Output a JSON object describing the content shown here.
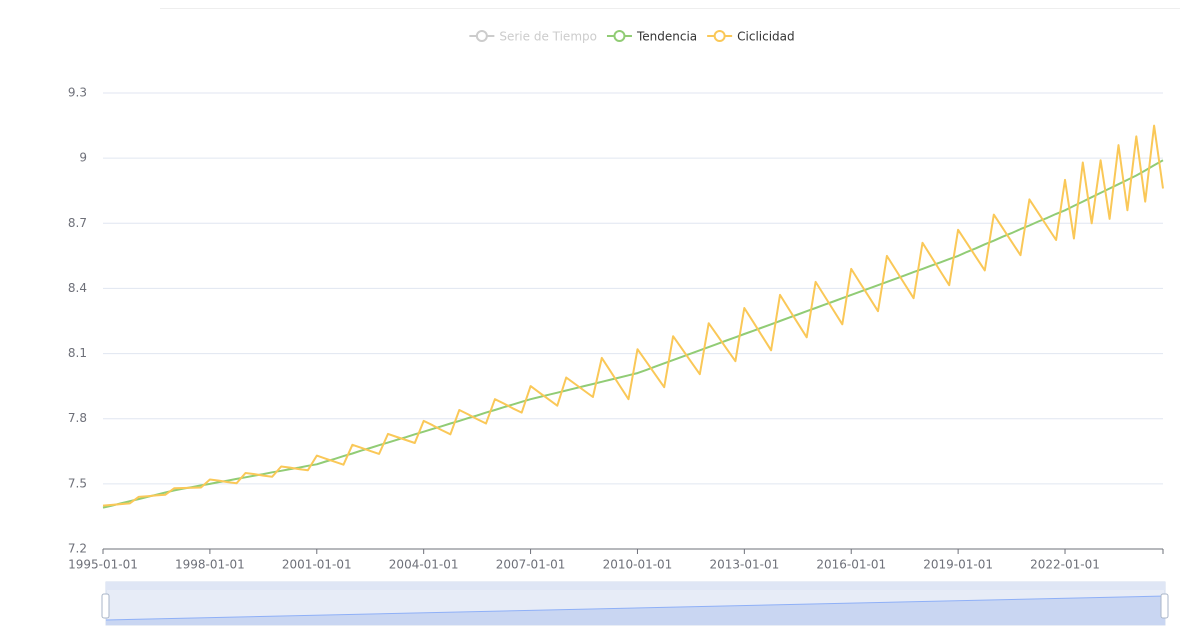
{
  "chart_data": {
    "type": "line",
    "categories": [
      "1995-01-01",
      null,
      null,
      null,
      null,
      null,
      null,
      null,
      null,
      null,
      null,
      null,
      "1998-01-01",
      null,
      null,
      null,
      null,
      null,
      null,
      null,
      null,
      null,
      null,
      null,
      "2001-01-01",
      null,
      null,
      null,
      null,
      null,
      null,
      null,
      null,
      null,
      null,
      null,
      "2004-01-01",
      null,
      null,
      null,
      null,
      null,
      null,
      null,
      null,
      null,
      null,
      null,
      "2007-01-01",
      null,
      null,
      null,
      null,
      null,
      null,
      null,
      null,
      null,
      null,
      null,
      "2010-01-01",
      null,
      null,
      null,
      null,
      null,
      null,
      null,
      null,
      null,
      null,
      null,
      "2013-01-01",
      null,
      null,
      null,
      null,
      null,
      null,
      null,
      null,
      null,
      null,
      null,
      "2016-01-01",
      null,
      null,
      null,
      null,
      null,
      null,
      null,
      null,
      null,
      null,
      null,
      "2019-01-01",
      null,
      null,
      null,
      null,
      null,
      null,
      null,
      null,
      null,
      null,
      null,
      "2022-01-01",
      null,
      null,
      null,
      null,
      null,
      null,
      null,
      null,
      null,
      null,
      null
    ],
    "series": [
      {
        "name": "Serie de Tiempo",
        "color": "#cccccc",
        "hidden": true
      },
      {
        "name": "Tendencia",
        "color": "#91cc75",
        "values": [
          7.39,
          7.4,
          7.41,
          7.42,
          7.43,
          7.44,
          7.45,
          7.46,
          7.47,
          7.478,
          7.485,
          7.493,
          7.5,
          7.508,
          7.515,
          7.523,
          7.53,
          7.538,
          7.545,
          7.553,
          7.56,
          7.568,
          7.575,
          7.583,
          7.59,
          7.603,
          7.615,
          7.628,
          7.64,
          7.653,
          7.665,
          7.678,
          7.69,
          7.703,
          7.715,
          7.728,
          7.74,
          7.753,
          7.765,
          7.778,
          7.79,
          7.803,
          7.815,
          7.828,
          7.84,
          7.853,
          7.865,
          7.878,
          7.89,
          7.9,
          7.91,
          7.92,
          7.93,
          7.94,
          7.95,
          7.96,
          7.97,
          7.98,
          7.99,
          8.0,
          8.01,
          8.025,
          8.04,
          8.055,
          8.07,
          8.085,
          8.1,
          8.115,
          8.13,
          8.145,
          8.16,
          8.175,
          8.19,
          8.205,
          8.22,
          8.235,
          8.25,
          8.265,
          8.28,
          8.295,
          8.31,
          8.325,
          8.34,
          8.355,
          8.37,
          8.385,
          8.4,
          8.415,
          8.43,
          8.445,
          8.46,
          8.475,
          8.49,
          8.505,
          8.52,
          8.535,
          8.55,
          8.568,
          8.585,
          8.603,
          8.62,
          8.638,
          8.655,
          8.673,
          8.69,
          8.708,
          8.725,
          8.743,
          8.76,
          8.78,
          8.8,
          8.82,
          8.84,
          8.86,
          8.88,
          8.9,
          8.92,
          8.943,
          8.967,
          8.99
        ]
      },
      {
        "name": "Ciclicidad",
        "color": "#fac858",
        "values": [
          7.4,
          7.403,
          7.407,
          7.41,
          7.44,
          7.443,
          7.447,
          7.45,
          7.48,
          7.481,
          7.482,
          7.483,
          7.52,
          7.515,
          7.508,
          7.503,
          7.55,
          7.545,
          7.538,
          7.533,
          7.58,
          7.575,
          7.568,
          7.563,
          7.63,
          7.616,
          7.602,
          7.588,
          7.68,
          7.666,
          7.652,
          7.638,
          7.73,
          7.716,
          7.702,
          7.688,
          7.79,
          7.77,
          7.748,
          7.728,
          7.84,
          7.82,
          7.798,
          7.778,
          7.89,
          7.87,
          7.848,
          7.828,
          7.95,
          7.92,
          7.89,
          7.86,
          7.99,
          7.96,
          7.93,
          7.9,
          8.08,
          8.017,
          7.953,
          7.89,
          8.12,
          8.062,
          8.003,
          7.945,
          8.18,
          8.122,
          8.063,
          8.005,
          8.24,
          8.182,
          8.123,
          8.065,
          8.31,
          8.245,
          8.18,
          8.115,
          8.37,
          8.305,
          8.24,
          8.175,
          8.43,
          8.365,
          8.3,
          8.235,
          8.49,
          8.425,
          8.36,
          8.295,
          8.55,
          8.485,
          8.42,
          8.355,
          8.61,
          8.545,
          8.48,
          8.415,
          8.67,
          8.608,
          8.545,
          8.483,
          8.74,
          8.678,
          8.615,
          8.553,
          8.81,
          8.748,
          8.685,
          8.623,
          8.9,
          8.63,
          8.98,
          8.7,
          8.99,
          8.72,
          9.06,
          8.76,
          9.1,
          8.8,
          9.15,
          8.86
        ]
      }
    ],
    "ylim": [
      7.2,
      9.3
    ],
    "yticks": [
      7.2,
      7.5,
      7.8,
      8.1,
      8.4,
      8.7,
      9,
      9.3
    ],
    "grid": true,
    "legend": "top"
  }
}
